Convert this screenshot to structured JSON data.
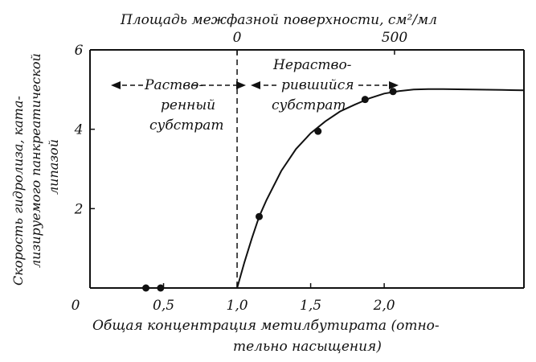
{
  "chart_data": {
    "type": "scatter",
    "xlabel_lines": [
      "Общая концентрация метилбутирата (отно-",
      "тельно насыщения)"
    ],
    "top_axis_label": "Площадь межфазной поверхности, см²/мл",
    "ylabel_lines": [
      "Скорость гидролиза, ката-",
      "лизируемого панкреатической",
      "липазой"
    ],
    "xlim": [
      0,
      2.95
    ],
    "ylim": [
      0,
      6
    ],
    "x_ticks": [
      {
        "value": 0,
        "label": "0"
      },
      {
        "value": 0.5,
        "label": "0,5"
      },
      {
        "value": 1.0,
        "label": "1,0"
      },
      {
        "value": 1.5,
        "label": "1,5"
      },
      {
        "value": 2.0,
        "label": "2,0"
      }
    ],
    "y_ticks": [
      {
        "value": 2,
        "label": "2"
      },
      {
        "value": 4,
        "label": "4"
      },
      {
        "value": 6,
        "label": "6"
      }
    ],
    "top_ticks": [
      {
        "x_value": 1.0,
        "label": "0"
      },
      {
        "x_value": 2.07,
        "label": "500"
      }
    ],
    "points": [
      {
        "x": 0.38,
        "y": 0
      },
      {
        "x": 0.48,
        "y": 0
      },
      {
        "x": 1.15,
        "y": 1.8
      },
      {
        "x": 1.55,
        "y": 3.95
      },
      {
        "x": 1.87,
        "y": 4.75
      },
      {
        "x": 2.06,
        "y": 4.95
      }
    ],
    "curve": {
      "x": [
        1.0,
        1.05,
        1.1,
        1.15,
        1.2,
        1.3,
        1.4,
        1.5,
        1.6,
        1.7,
        1.8,
        1.9,
        2.0,
        2.1,
        2.2,
        2.3,
        2.4,
        2.6,
        2.8,
        2.95
      ],
      "y": [
        0,
        0.65,
        1.25,
        1.8,
        2.22,
        2.95,
        3.5,
        3.9,
        4.2,
        4.45,
        4.62,
        4.78,
        4.9,
        4.96,
        5.0,
        5.01,
        5.01,
        5.0,
        4.99,
        4.98
      ]
    },
    "divider_x": 1.0,
    "regions": [
      {
        "lines": [
          "Раство-",
          "ренный",
          "субстрат"
        ]
      },
      {
        "lines": [
          "Нераство-",
          "рившийся",
          "субстрат"
        ]
      }
    ]
  }
}
